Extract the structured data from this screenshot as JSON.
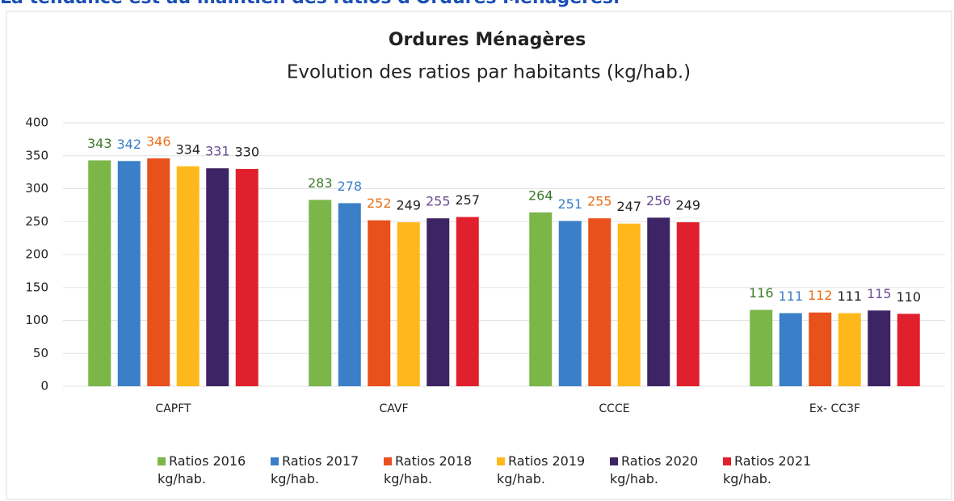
{
  "header": "La tendance est au maintien des ratios d'Ordures Ménagères.",
  "chart_data": {
    "type": "bar",
    "title": "Ordures Ménagères",
    "subtitle": "Evolution des ratios par habitants (kg/hab.)",
    "categories": [
      "CAPFT",
      "CAVF",
      "CCCE",
      "Ex- CC3F"
    ],
    "series": [
      {
        "name": "Ratios 2016 kg/hab.",
        "color": "#7ab648",
        "label_color": "#3e7a2a",
        "values": [
          343,
          283,
          264,
          116
        ]
      },
      {
        "name": "Ratios 2017 kg/hab.",
        "color": "#3a7fc7",
        "label_color": "#3a7fc7",
        "values": [
          342,
          278,
          251,
          111
        ]
      },
      {
        "name": "Ratios 2018 kg/hab.",
        "color": "#e8501c",
        "label_color": "#e8701c",
        "values": [
          346,
          252,
          255,
          112
        ]
      },
      {
        "name": "Ratios 2019 kg/hab.",
        "color": "#ffb81c",
        "label_color": "#222222",
        "values": [
          334,
          249,
          247,
          111
        ]
      },
      {
        "name": "Ratios 2020 kg/hab.",
        "color": "#3d2464",
        "label_color": "#6a4c93",
        "values": [
          331,
          255,
          256,
          115
        ]
      },
      {
        "name": "Ratios 2021 kg/hab.",
        "color": "#e0202c",
        "label_color": "#222222",
        "values": [
          330,
          257,
          249,
          110
        ]
      }
    ],
    "ylim": [
      0,
      400
    ],
    "yticks": [
      0,
      50,
      100,
      150,
      200,
      250,
      300,
      350,
      400
    ],
    "grid": true,
    "legend": "bottom"
  }
}
